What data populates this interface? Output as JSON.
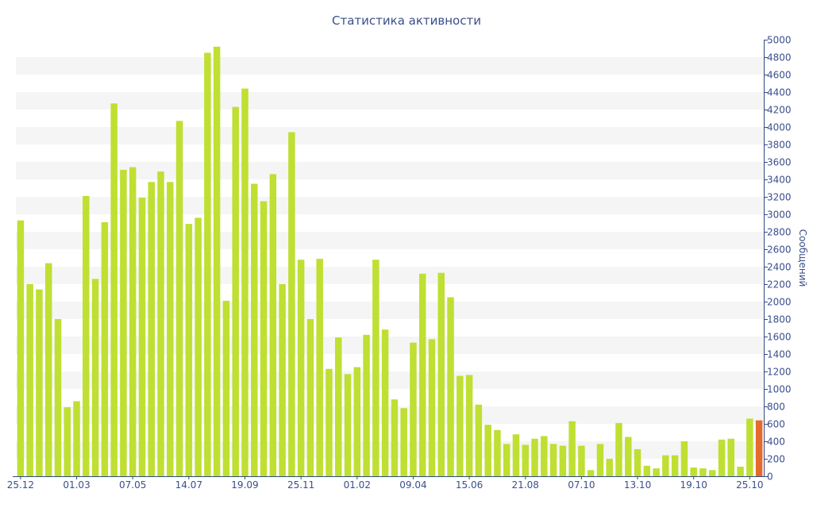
{
  "chart_data": {
    "type": "bar",
    "title": "Статистика активности",
    "xlabel": "",
    "ylabel": "Сообщений",
    "ylim": [
      0,
      5000
    ],
    "y_ticks": [
      0,
      200,
      400,
      600,
      800,
      1000,
      1200,
      1400,
      1600,
      1800,
      2000,
      2200,
      2400,
      2600,
      2800,
      3000,
      3200,
      3400,
      3600,
      3800,
      4000,
      4200,
      4400,
      4600,
      4800,
      5000
    ],
    "x_tick_labels": [
      {
        "index": 0,
        "label": "25.12"
      },
      {
        "index": 6,
        "label": "01.03"
      },
      {
        "index": 12,
        "label": "07.05"
      },
      {
        "index": 18,
        "label": "14.07"
      },
      {
        "index": 24,
        "label": "19.09"
      },
      {
        "index": 30,
        "label": "25.11"
      },
      {
        "index": 36,
        "label": "01.02"
      },
      {
        "index": 42,
        "label": "09.04"
      },
      {
        "index": 48,
        "label": "15.06"
      },
      {
        "index": 54,
        "label": "21.08"
      },
      {
        "index": 60,
        "label": "07.10"
      },
      {
        "index": 66,
        "label": "13.10"
      },
      {
        "index": 72,
        "label": "19.10"
      },
      {
        "index": 78,
        "label": "25.10"
      }
    ],
    "values": [
      2930,
      2200,
      2140,
      2440,
      1800,
      790,
      860,
      3210,
      2260,
      2910,
      4270,
      3510,
      3540,
      3190,
      3370,
      3490,
      3370,
      4070,
      2890,
      2960,
      4850,
      4920,
      2010,
      4230,
      4440,
      3350,
      3150,
      3460,
      2200,
      3940,
      2480,
      1800,
      2490,
      1230,
      1590,
      1170,
      1250,
      1620,
      2480,
      1680,
      880,
      780,
      1530,
      2320,
      1570,
      2330,
      2050,
      1150,
      1160,
      820,
      590,
      530,
      370,
      480,
      360,
      430,
      460,
      370,
      350,
      630,
      350,
      70,
      370,
      200,
      610,
      450,
      310,
      120,
      90,
      240,
      240,
      400,
      100,
      90,
      70,
      420,
      430,
      110,
      660,
      640
    ],
    "grid": true,
    "colors": {
      "bar": "#bfdf32",
      "last_bar": "#e46a2e",
      "band": "#f5f5f5",
      "axis": "#2e4a86",
      "text": "#3a4f8c"
    }
  }
}
